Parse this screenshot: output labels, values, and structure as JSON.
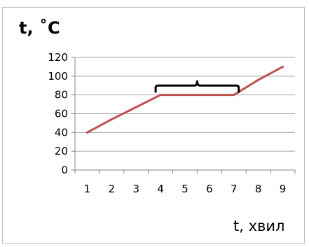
{
  "chart_data": {
    "type": "line",
    "title": "t, ˚C",
    "xlabel": "t, хвил",
    "ylabel": "",
    "categories": [
      "1",
      "2",
      "3",
      "4",
      "5",
      "6",
      "7",
      "8",
      "9"
    ],
    "x": [
      1,
      2,
      3,
      4,
      5,
      6,
      7,
      8,
      9
    ],
    "values": [
      40,
      54,
      67,
      80,
      80,
      80,
      80,
      96,
      110
    ],
    "y_ticks": [
      "0",
      "20",
      "40",
      "60",
      "80",
      "100",
      "120"
    ],
    "ylim": [
      0,
      120
    ],
    "xlim": [
      0.5,
      9.5
    ],
    "grid": "horizontal",
    "legend": "none",
    "annotation": {
      "type": "brace",
      "from_x": 3.8,
      "to_x": 7.2,
      "y": 90
    },
    "colors": {
      "line": "#c0504d",
      "grid": "#a6a6a6",
      "axis": "#868686",
      "brace": "#000000"
    }
  }
}
